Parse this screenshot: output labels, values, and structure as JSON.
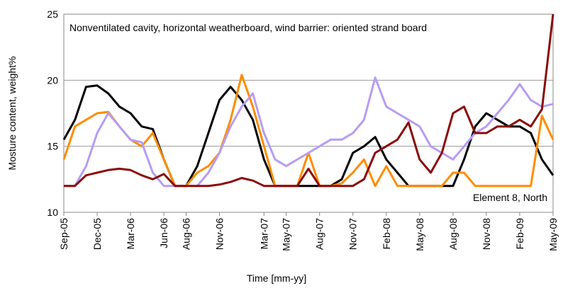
{
  "chart_data": {
    "type": "line",
    "annotations": [
      "Nonventilated cavity, horizontal weatherboard, wind barrier: oriented strand board",
      "Element 8, North"
    ],
    "x_label": "Time [mm-yy]",
    "y_label": "Mosture content, weight%",
    "categories": [
      "Sep-05",
      null,
      null,
      "Dec-05",
      null,
      null,
      "Mar-06",
      null,
      null,
      "Jun-06",
      null,
      "Aug-06",
      null,
      null,
      "Nov-06",
      null,
      null,
      null,
      "Mar-07",
      null,
      "May-07",
      null,
      null,
      "Aug-07",
      null,
      null,
      "Nov-07",
      null,
      null,
      "Feb-08",
      null,
      null,
      "May-08",
      null,
      null,
      "Aug-08",
      null,
      null,
      "Nov-08",
      null,
      null,
      "Feb-09",
      null,
      null,
      "May-09"
    ],
    "series": [
      {
        "color": "#000000",
        "values": [
          15.5,
          17,
          19.5,
          19.6,
          19,
          18,
          17.5,
          16.5,
          16.3,
          14,
          12,
          12,
          13.5,
          16,
          18.5,
          19.5,
          18.5,
          17,
          14,
          12,
          12,
          12,
          12,
          12,
          12,
          12.5,
          14.5,
          15,
          15.7,
          14,
          13,
          12,
          12,
          12,
          12,
          12,
          14,
          16.5,
          17.5,
          17,
          16.5,
          16.5,
          16,
          14,
          12.8
        ]
      },
      {
        "color": "#ff8c00",
        "values": [
          14,
          16.5,
          17,
          17.5,
          17.6,
          16.5,
          15.5,
          15,
          16,
          14,
          12,
          12,
          13,
          13.5,
          14.5,
          17,
          20.4,
          18,
          15,
          12,
          12,
          12,
          14.5,
          12,
          12,
          12.2,
          13,
          14,
          12,
          13.5,
          12,
          12,
          12,
          12,
          12,
          13,
          13,
          12,
          12,
          12,
          12,
          12,
          12,
          17.3,
          15.5
        ]
      },
      {
        "color": "#b79cf5",
        "values": [
          12,
          12,
          13.5,
          16,
          17.5,
          16.5,
          15.5,
          15.3,
          13,
          12,
          12,
          12,
          12,
          13,
          14.5,
          16.5,
          18,
          19,
          16,
          14,
          13.5,
          14,
          14.5,
          15,
          15.5,
          15.5,
          16,
          17,
          20.2,
          18,
          17.5,
          17,
          16.5,
          15,
          14.5,
          14,
          15,
          16,
          16.5,
          17.5,
          18.5,
          19.7,
          18.5,
          18,
          18.2
        ]
      },
      {
        "color": "#8b0a0a",
        "values": [
          12,
          12,
          12.8,
          13,
          13.2,
          13.3,
          13.2,
          12.8,
          12.5,
          12.9,
          12,
          12,
          12,
          12,
          12.1,
          12.3,
          12.6,
          12.4,
          12,
          12,
          12,
          12,
          13.3,
          12,
          12,
          12,
          12,
          12.5,
          14.5,
          15,
          15.5,
          16.8,
          14,
          13,
          14.5,
          17.5,
          18,
          16,
          16,
          16.5,
          16.5,
          17,
          16.5,
          17.8,
          25
        ]
      }
    ],
    "ylim": [
      10,
      25
    ],
    "yticks": [
      10,
      15,
      20,
      25
    ],
    "grid": true
  }
}
